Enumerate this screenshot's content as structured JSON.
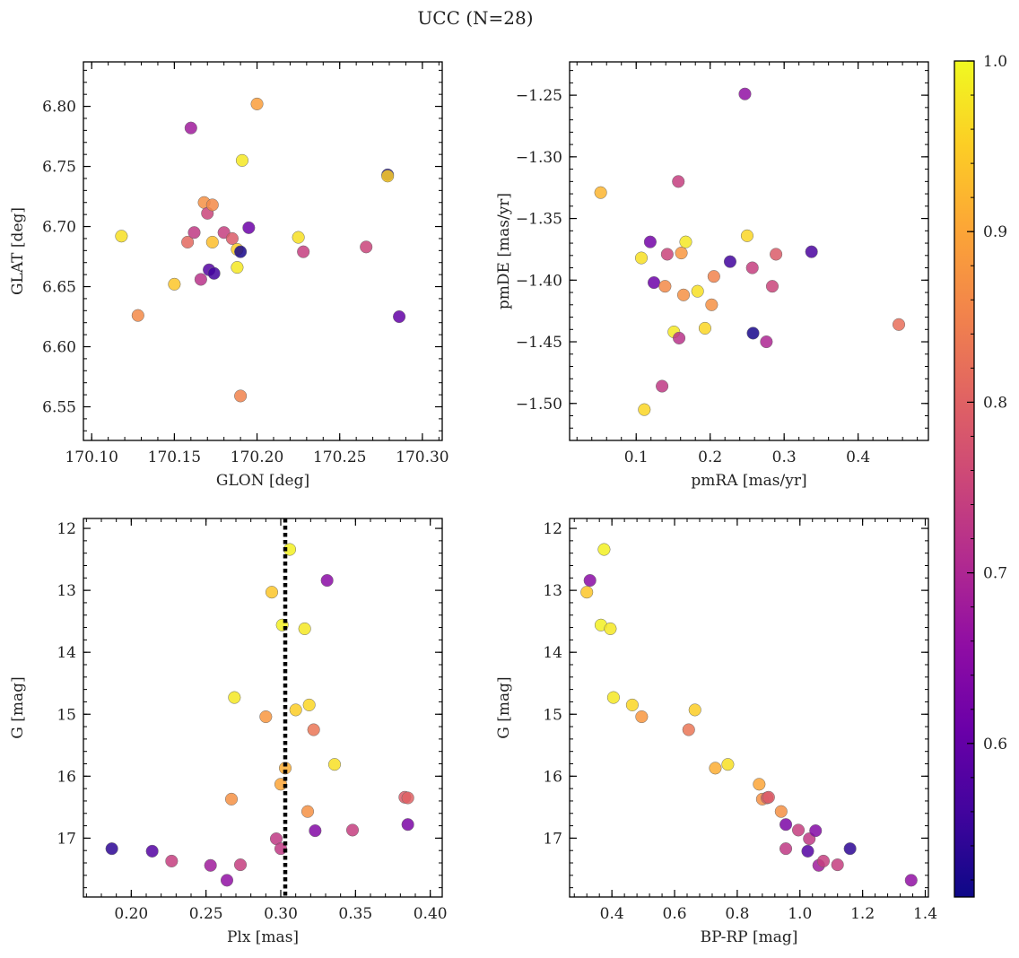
{
  "figure": {
    "title": "UCC (N=28)"
  },
  "colorbar": {
    "range": [
      0.51,
      1.0
    ],
    "ticks": [
      0.6,
      0.7,
      0.8,
      0.9,
      1.0
    ],
    "tick_labels": [
      "0.6",
      "0.7",
      "0.8",
      "0.9",
      "1.0"
    ],
    "colormap": "plasma"
  },
  "chart_data": [
    {
      "type": "scatter",
      "xlabel": "GLON [deg]",
      "ylabel": "GLAT [deg]",
      "xlim": [
        170.095,
        170.312
      ],
      "ylim": [
        6.522,
        6.837
      ],
      "xticks": [
        170.1,
        170.15,
        170.2,
        170.25,
        170.3
      ],
      "xtick_labels": [
        "170.10",
        "170.15",
        "170.20",
        "170.25",
        "170.30"
      ],
      "yticks": [
        6.55,
        6.6,
        6.65,
        6.7,
        6.75,
        6.8
      ],
      "ytick_labels": [
        "6.55",
        "6.60",
        "6.65",
        "6.70",
        "6.75",
        "6.80"
      ],
      "points": [
        {
          "x": 170.118,
          "y": 6.692,
          "c": 0.97
        },
        {
          "x": 170.128,
          "y": 6.626,
          "c": 0.86
        },
        {
          "x": 170.15,
          "y": 6.652,
          "c": 0.94
        },
        {
          "x": 170.158,
          "y": 6.687,
          "c": 0.81
        },
        {
          "x": 170.16,
          "y": 6.782,
          "c": 0.68
        },
        {
          "x": 170.162,
          "y": 6.695,
          "c": 0.73
        },
        {
          "x": 170.166,
          "y": 6.656,
          "c": 0.72
        },
        {
          "x": 170.168,
          "y": 6.72,
          "c": 0.87
        },
        {
          "x": 170.17,
          "y": 6.711,
          "c": 0.75
        },
        {
          "x": 170.171,
          "y": 6.664,
          "c": 0.58
        },
        {
          "x": 170.173,
          "y": 6.687,
          "c": 0.93
        },
        {
          "x": 170.173,
          "y": 6.718,
          "c": 0.86
        },
        {
          "x": 170.174,
          "y": 6.661,
          "c": 0.56
        },
        {
          "x": 170.18,
          "y": 6.695,
          "c": 0.74
        },
        {
          "x": 170.185,
          "y": 6.69,
          "c": 0.79
        },
        {
          "x": 170.188,
          "y": 6.666,
          "c": 0.98
        },
        {
          "x": 170.188,
          "y": 6.681,
          "c": 0.95
        },
        {
          "x": 170.19,
          "y": 6.679,
          "c": 0.52
        },
        {
          "x": 170.19,
          "y": 6.559,
          "c": 0.85
        },
        {
          "x": 170.191,
          "y": 6.755,
          "c": 0.98
        },
        {
          "x": 170.195,
          "y": 6.699,
          "c": 0.61
        },
        {
          "x": 170.2,
          "y": 6.802,
          "c": 0.89
        },
        {
          "x": 170.225,
          "y": 6.691,
          "c": 0.97
        },
        {
          "x": 170.228,
          "y": 6.679,
          "c": 0.74
        },
        {
          "x": 170.266,
          "y": 6.683,
          "c": 0.75
        },
        {
          "x": 170.279,
          "y": 6.743,
          "c": 0.52
        },
        {
          "x": 170.279,
          "y": 6.742,
          "c": 0.95
        },
        {
          "x": 170.286,
          "y": 6.625,
          "c": 0.6
        }
      ]
    },
    {
      "type": "scatter",
      "xlabel": "pmRA [mas/yr]",
      "ylabel": "pmDE [mas/yr]",
      "xlim": [
        0.01,
        0.495
      ],
      "ylim": [
        -1.53,
        -1.223
      ],
      "xticks": [
        0.1,
        0.2,
        0.3,
        0.4
      ],
      "xtick_labels": [
        "0.1",
        "0.2",
        "0.3",
        "0.4"
      ],
      "yticks": [
        -1.5,
        -1.45,
        -1.4,
        -1.35,
        -1.3,
        -1.25
      ],
      "ytick_labels": [
        "−1.50",
        "−1.45",
        "−1.40",
        "−1.35",
        "−1.30",
        "−1.25"
      ],
      "points": [
        {
          "x": 0.052,
          "y": -1.329,
          "c": 0.92
        },
        {
          "x": 0.107,
          "y": -1.382,
          "c": 0.97
        },
        {
          "x": 0.111,
          "y": -1.505,
          "c": 0.96
        },
        {
          "x": 0.119,
          "y": -1.369,
          "c": 0.62
        },
        {
          "x": 0.124,
          "y": -1.402,
          "c": 0.61
        },
        {
          "x": 0.135,
          "y": -1.486,
          "c": 0.73
        },
        {
          "x": 0.139,
          "y": -1.405,
          "c": 0.86
        },
        {
          "x": 0.142,
          "y": -1.379,
          "c": 0.75
        },
        {
          "x": 0.151,
          "y": -1.442,
          "c": 0.98
        },
        {
          "x": 0.157,
          "y": -1.32,
          "c": 0.74
        },
        {
          "x": 0.158,
          "y": -1.447,
          "c": 0.72
        },
        {
          "x": 0.161,
          "y": -1.378,
          "c": 0.88
        },
        {
          "x": 0.164,
          "y": -1.412,
          "c": 0.87
        },
        {
          "x": 0.167,
          "y": -1.369,
          "c": 0.98
        },
        {
          "x": 0.183,
          "y": -1.409,
          "c": 0.97
        },
        {
          "x": 0.193,
          "y": -1.439,
          "c": 0.96
        },
        {
          "x": 0.202,
          "y": -1.42,
          "c": 0.87
        },
        {
          "x": 0.205,
          "y": -1.397,
          "c": 0.85
        },
        {
          "x": 0.227,
          "y": -1.385,
          "c": 0.56
        },
        {
          "x": 0.247,
          "y": -1.249,
          "c": 0.66
        },
        {
          "x": 0.25,
          "y": -1.364,
          "c": 0.96
        },
        {
          "x": 0.257,
          "y": -1.39,
          "c": 0.74
        },
        {
          "x": 0.258,
          "y": -1.443,
          "c": 0.52
        },
        {
          "x": 0.276,
          "y": -1.45,
          "c": 0.7
        },
        {
          "x": 0.284,
          "y": -1.405,
          "c": 0.75
        },
        {
          "x": 0.289,
          "y": -1.379,
          "c": 0.79
        },
        {
          "x": 0.337,
          "y": -1.377,
          "c": 0.57
        },
        {
          "x": 0.455,
          "y": -1.436,
          "c": 0.82
        }
      ]
    },
    {
      "type": "scatter",
      "xlabel": "Plx [mas]",
      "ylabel": "G [mag]",
      "xlim": [
        0.168,
        0.408
      ],
      "ylim": [
        17.95,
        11.84
      ],
      "y_inverted": true,
      "xticks": [
        0.2,
        0.25,
        0.3,
        0.35,
        0.4
      ],
      "xtick_labels": [
        "0.20",
        "0.25",
        "0.30",
        "0.35",
        "0.40"
      ],
      "yticks": [
        12,
        13,
        14,
        15,
        16,
        17
      ],
      "ytick_labels": [
        "12",
        "13",
        "14",
        "15",
        "16",
        "17"
      ],
      "vline": {
        "x": 0.303,
        "style": "dotted",
        "color": "#000000"
      },
      "points": [
        {
          "x": 0.187,
          "y": 17.17,
          "c": 0.54
        },
        {
          "x": 0.214,
          "y": 17.21,
          "c": 0.58
        },
        {
          "x": 0.227,
          "y": 17.37,
          "c": 0.74
        },
        {
          "x": 0.253,
          "y": 17.44,
          "c": 0.68
        },
        {
          "x": 0.264,
          "y": 17.68,
          "c": 0.66
        },
        {
          "x": 0.267,
          "y": 16.37,
          "c": 0.87
        },
        {
          "x": 0.269,
          "y": 14.73,
          "c": 0.98
        },
        {
          "x": 0.273,
          "y": 17.43,
          "c": 0.74
        },
        {
          "x": 0.29,
          "y": 15.04,
          "c": 0.88
        },
        {
          "x": 0.294,
          "y": 13.03,
          "c": 0.94
        },
        {
          "x": 0.297,
          "y": 17.01,
          "c": 0.73
        },
        {
          "x": 0.3,
          "y": 17.17,
          "c": 0.73
        },
        {
          "x": 0.3,
          "y": 16.13,
          "c": 0.9
        },
        {
          "x": 0.301,
          "y": 13.56,
          "c": 0.99
        },
        {
          "x": 0.303,
          "y": 15.87,
          "c": 0.91
        },
        {
          "x": 0.306,
          "y": 12.34,
          "c": 0.99
        },
        {
          "x": 0.31,
          "y": 14.93,
          "c": 0.95
        },
        {
          "x": 0.316,
          "y": 13.62,
          "c": 0.98
        },
        {
          "x": 0.318,
          "y": 16.57,
          "c": 0.87
        },
        {
          "x": 0.319,
          "y": 14.85,
          "c": 0.96
        },
        {
          "x": 0.322,
          "y": 15.25,
          "c": 0.83
        },
        {
          "x": 0.323,
          "y": 16.88,
          "c": 0.64
        },
        {
          "x": 0.331,
          "y": 12.84,
          "c": 0.65
        },
        {
          "x": 0.336,
          "y": 15.81,
          "c": 0.97
        },
        {
          "x": 0.348,
          "y": 16.87,
          "c": 0.74
        },
        {
          "x": 0.383,
          "y": 16.34,
          "c": 0.79
        },
        {
          "x": 0.385,
          "y": 16.35,
          "c": 0.8
        },
        {
          "x": 0.385,
          "y": 16.78,
          "c": 0.63
        }
      ]
    },
    {
      "type": "scatter",
      "xlabel": "BP-RP [mag]",
      "ylabel": "G [mag]",
      "xlim": [
        0.265,
        1.41
      ],
      "ylim": [
        17.95,
        11.84
      ],
      "y_inverted": true,
      "xticks": [
        0.4,
        0.6,
        0.8,
        1.0,
        1.2,
        1.4
      ],
      "xtick_labels": [
        "0.4",
        "0.6",
        "0.8",
        "1.0",
        "1.2",
        "1.4"
      ],
      "yticks": [
        12,
        13,
        14,
        15,
        16,
        17
      ],
      "ytick_labels": [
        "12",
        "13",
        "14",
        "15",
        "16",
        "17"
      ],
      "points": [
        {
          "x": 0.32,
          "y": 13.03,
          "c": 0.94
        },
        {
          "x": 0.33,
          "y": 12.84,
          "c": 0.65
        },
        {
          "x": 0.365,
          "y": 13.56,
          "c": 0.99
        },
        {
          "x": 0.375,
          "y": 12.34,
          "c": 0.99
        },
        {
          "x": 0.395,
          "y": 13.62,
          "c": 0.98
        },
        {
          "x": 0.405,
          "y": 14.73,
          "c": 0.98
        },
        {
          "x": 0.465,
          "y": 14.85,
          "c": 0.96
        },
        {
          "x": 0.495,
          "y": 15.04,
          "c": 0.88
        },
        {
          "x": 0.645,
          "y": 15.25,
          "c": 0.83
        },
        {
          "x": 0.665,
          "y": 14.93,
          "c": 0.95
        },
        {
          "x": 0.73,
          "y": 15.87,
          "c": 0.91
        },
        {
          "x": 0.77,
          "y": 15.81,
          "c": 0.97
        },
        {
          "x": 0.87,
          "y": 16.13,
          "c": 0.9
        },
        {
          "x": 0.88,
          "y": 16.37,
          "c": 0.87
        },
        {
          "x": 0.895,
          "y": 16.35,
          "c": 0.8
        },
        {
          "x": 0.9,
          "y": 16.34,
          "c": 0.79
        },
        {
          "x": 0.94,
          "y": 16.57,
          "c": 0.87
        },
        {
          "x": 0.955,
          "y": 16.78,
          "c": 0.63
        },
        {
          "x": 0.955,
          "y": 17.17,
          "c": 0.73
        },
        {
          "x": 0.995,
          "y": 16.87,
          "c": 0.74
        },
        {
          "x": 1.025,
          "y": 17.21,
          "c": 0.58
        },
        {
          "x": 1.03,
          "y": 17.01,
          "c": 0.73
        },
        {
          "x": 1.05,
          "y": 16.88,
          "c": 0.64
        },
        {
          "x": 1.06,
          "y": 17.44,
          "c": 0.68
        },
        {
          "x": 1.075,
          "y": 17.37,
          "c": 0.74
        },
        {
          "x": 1.12,
          "y": 17.43,
          "c": 0.74
        },
        {
          "x": 1.16,
          "y": 17.17,
          "c": 0.54
        },
        {
          "x": 1.355,
          "y": 17.68,
          "c": 0.66
        }
      ]
    }
  ]
}
